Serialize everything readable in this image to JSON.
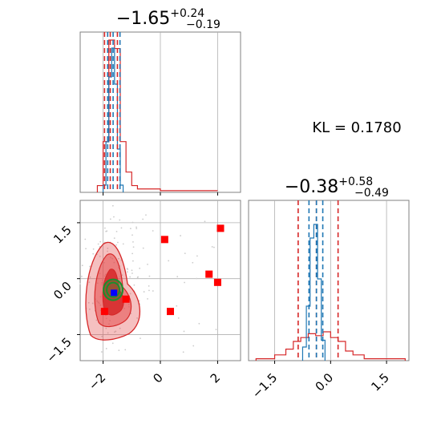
{
  "chart_data": [
    {
      "type": "histogram",
      "panel": "marginal-param-1",
      "title": {
        "median": "−1.65",
        "plus": "+0.24",
        "minus": "−0.19"
      },
      "x_range": [
        -2.8,
        2.8
      ],
      "grid": true,
      "series": [
        {
          "color": "#1f77b4",
          "style": "step",
          "bins": [
            -2.0,
            -1.9,
            -1.8,
            -1.7,
            -1.6,
            -1.5,
            -1.4,
            -1.3
          ],
          "counts": [
            0.05,
            0.35,
            0.8,
            1.0,
            0.75,
            0.3,
            0.05,
            0
          ]
        },
        {
          "color": "#d62728",
          "style": "step",
          "bins": [
            -2.2,
            -2.0,
            -1.8,
            -1.6,
            -1.4,
            -1.2,
            -1.0,
            -0.8,
            0.0,
            2.0
          ],
          "counts": [
            0.04,
            0.3,
            0.9,
            0.85,
            0.3,
            0.12,
            0.04,
            0.02,
            0.01,
            0.01
          ]
        }
      ],
      "quantile_lines": {
        "blue": [
          -1.84,
          -1.65,
          -1.41
        ],
        "red": [
          -1.95,
          -1.75,
          -1.5
        ]
      }
    },
    {
      "type": "scatter",
      "panel": "joint-param-1-param-2",
      "x_ticks": [
        "−2",
        "0",
        "2"
      ],
      "y_ticks": [
        "1.5",
        "0.0",
        "−1.5"
      ],
      "x_range": [
        -2.8,
        2.8
      ],
      "y_range": [
        -2.2,
        2.1
      ],
      "grid": true,
      "red_square_points": [
        {
          "x": 0.15,
          "y": 1.05
        },
        {
          "x": 2.1,
          "y": 1.35
        },
        {
          "x": 1.7,
          "y": 0.12
        },
        {
          "x": 2.0,
          "y": -0.1
        },
        {
          "x": -1.2,
          "y": -0.55
        },
        {
          "x": 0.35,
          "y": -0.88
        },
        {
          "x": -1.95,
          "y": -0.88
        }
      ],
      "red_contour_center": {
        "x": -1.65,
        "y": -0.4
      },
      "green_contour_center": {
        "x": -1.65,
        "y": -0.3
      },
      "blue_marker": {
        "x": -1.62,
        "y": -0.38
      }
    },
    {
      "type": "histogram",
      "panel": "marginal-param-2",
      "title": {
        "median": "−0.38",
        "plus": "+0.58",
        "minus": "−0.49"
      },
      "x_range": [
        -2.2,
        2.1
      ],
      "x_ticks": [
        "−1.5",
        "0.0",
        "1.5"
      ],
      "grid": true,
      "series": [
        {
          "color": "#1f77b4",
          "style": "step",
          "bins": [
            -0.75,
            -0.65,
            -0.55,
            -0.45,
            -0.35,
            -0.25,
            -0.15
          ],
          "counts": [
            0.1,
            0.4,
            0.9,
            1.0,
            0.6,
            0.15,
            0
          ]
        },
        {
          "color": "#d62728",
          "style": "step",
          "bins": [
            -2.0,
            -1.5,
            -1.2,
            -1.0,
            -0.8,
            -0.6,
            -0.4,
            -0.2,
            0.0,
            0.2,
            0.4,
            0.6,
            0.9,
            2.0
          ],
          "counts": [
            0.01,
            0.03,
            0.06,
            0.1,
            0.12,
            0.14,
            0.13,
            0.15,
            0.12,
            0.1,
            0.05,
            0.03,
            0.01
          ]
        }
      ],
      "quantile_lines": {
        "blue": [
          -0.58,
          -0.38,
          -0.21
        ],
        "red": [
          -0.87,
          -0.38,
          0.2
        ]
      }
    }
  ],
  "annotation": {
    "kl_text": "KL = 0.1780"
  },
  "colors": {
    "blue": "#1f77b4",
    "red": "#d62728",
    "fill_red": "#e34a4a",
    "green": "#1a8f2e",
    "marker_blue": "#0000ff",
    "square_red": "#ff0000",
    "grid": "#b0b0b0"
  }
}
